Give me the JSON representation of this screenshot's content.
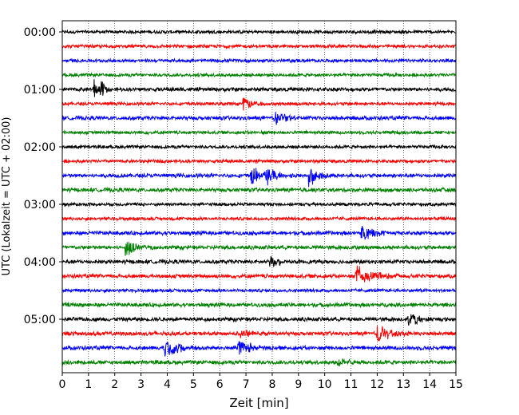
{
  "chart_data": {
    "type": "line",
    "subtype": "helicorder-seismogram",
    "title": "",
    "xlabel": "Zeit  [min]",
    "ylabel": "UTC (Lokalzeit = UTC + 02:00)",
    "xlim": [
      0,
      15
    ],
    "x_ticks": [
      0,
      1,
      2,
      3,
      4,
      5,
      6,
      7,
      8,
      9,
      10,
      11,
      12,
      13,
      14,
      15
    ],
    "grid": "vertical-dotted",
    "y_tick_labels": [
      "00:00",
      "01:00",
      "02:00",
      "03:00",
      "04:00",
      "05:00"
    ],
    "minutes_per_trace": 15,
    "trace_colors": [
      "#000000",
      "#ff0000",
      "#0000ff",
      "#008000"
    ],
    "traces": [
      {
        "start": "00:00",
        "color": "#000000",
        "noise": 0.25,
        "events": []
      },
      {
        "start": "00:15",
        "color": "#ff0000",
        "noise": 0.25,
        "events": []
      },
      {
        "start": "00:30",
        "color": "#0000ff",
        "noise": 0.25,
        "events": []
      },
      {
        "start": "00:45",
        "color": "#008000",
        "noise": 0.25,
        "events": []
      },
      {
        "start": "01:00",
        "color": "#000000",
        "noise": 0.3,
        "events": [
          {
            "t": 1.2,
            "amp": 0.9,
            "dur": 0.15
          },
          {
            "t": 1.45,
            "amp": 0.9,
            "dur": 0.15
          }
        ]
      },
      {
        "start": "01:15",
        "color": "#ff0000",
        "noise": 0.25,
        "events": [
          {
            "t": 6.9,
            "amp": 0.6,
            "dur": 0.35
          }
        ]
      },
      {
        "start": "01:30",
        "color": "#0000ff",
        "noise": 0.3,
        "events": [
          {
            "t": 8.1,
            "amp": 0.6,
            "dur": 0.4
          }
        ]
      },
      {
        "start": "01:45",
        "color": "#008000",
        "noise": 0.25,
        "events": []
      },
      {
        "start": "02:00",
        "color": "#000000",
        "noise": 0.25,
        "events": []
      },
      {
        "start": "02:15",
        "color": "#ff0000",
        "noise": 0.25,
        "events": []
      },
      {
        "start": "02:30",
        "color": "#0000ff",
        "noise": 0.3,
        "events": [
          {
            "t": 7.2,
            "amp": 0.7,
            "dur": 0.4
          },
          {
            "t": 7.8,
            "amp": 0.75,
            "dur": 0.4
          },
          {
            "t": 9.4,
            "amp": 1.0,
            "dur": 0.3
          }
        ]
      },
      {
        "start": "02:45",
        "color": "#008000",
        "noise": 0.3,
        "events": []
      },
      {
        "start": "03:00",
        "color": "#000000",
        "noise": 0.25,
        "events": []
      },
      {
        "start": "03:15",
        "color": "#ff0000",
        "noise": 0.25,
        "events": []
      },
      {
        "start": "03:30",
        "color": "#0000ff",
        "noise": 0.3,
        "events": [
          {
            "t": 11.4,
            "amp": 0.6,
            "dur": 0.5
          }
        ]
      },
      {
        "start": "03:45",
        "color": "#008000",
        "noise": 0.3,
        "events": [
          {
            "t": 2.4,
            "amp": 0.9,
            "dur": 0.35
          }
        ]
      },
      {
        "start": "04:00",
        "color": "#000000",
        "noise": 0.3,
        "events": [
          {
            "t": 7.9,
            "amp": 0.55,
            "dur": 0.3
          }
        ]
      },
      {
        "start": "04:15",
        "color": "#ff0000",
        "noise": 0.3,
        "events": [
          {
            "t": 11.2,
            "amp": 0.9,
            "dur": 0.6
          }
        ]
      },
      {
        "start": "04:30",
        "color": "#0000ff",
        "noise": 0.25,
        "events": []
      },
      {
        "start": "04:45",
        "color": "#008000",
        "noise": 0.3,
        "events": []
      },
      {
        "start": "05:00",
        "color": "#000000",
        "noise": 0.3,
        "events": [
          {
            "t": 13.2,
            "amp": 0.6,
            "dur": 0.35
          }
        ]
      },
      {
        "start": "05:15",
        "color": "#ff0000",
        "noise": 0.3,
        "events": [
          {
            "t": 6.7,
            "amp": 0.35,
            "dur": 0.5
          },
          {
            "t": 12.0,
            "amp": 0.75,
            "dur": 0.5
          }
        ]
      },
      {
        "start": "05:30",
        "color": "#0000ff",
        "noise": 0.3,
        "events": [
          {
            "t": 3.9,
            "amp": 0.75,
            "dur": 0.5
          },
          {
            "t": 6.7,
            "amp": 0.7,
            "dur": 0.5
          }
        ]
      },
      {
        "start": "05:45",
        "color": "#008000",
        "noise": 0.3,
        "events": [
          {
            "t": 10.5,
            "amp": 0.35,
            "dur": 0.4
          }
        ]
      }
    ]
  }
}
